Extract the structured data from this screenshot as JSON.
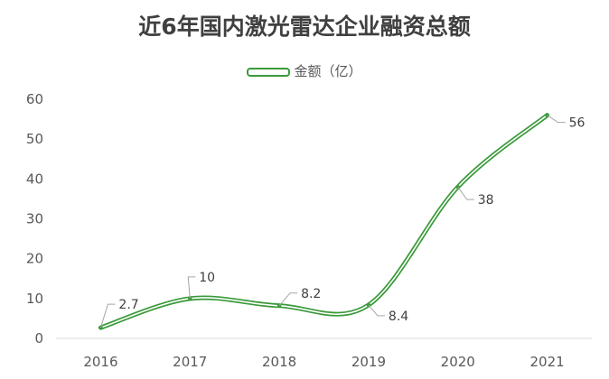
{
  "chart_data": {
    "type": "line",
    "title": "近6年国内激光雷达企业融资总额",
    "categories": [
      "2016",
      "2017",
      "2018",
      "2019",
      "2020",
      "2021"
    ],
    "series": [
      {
        "name": "金额（亿）",
        "values": [
          2.7,
          10,
          8.2,
          8.4,
          38,
          56
        ],
        "labels": [
          "2.7",
          "10",
          "8.2",
          "8.4",
          "38",
          "56"
        ]
      }
    ],
    "ylim": [
      0,
      60
    ],
    "yticks": [
      "0",
      "10",
      "20",
      "30",
      "40",
      "50",
      "60"
    ],
    "grid": false,
    "legend": "top-center",
    "smooth": true,
    "colors": {
      "line": "#3a9a3a",
      "axis": "#d9d9d9",
      "leader": "#a6a6a6"
    }
  }
}
